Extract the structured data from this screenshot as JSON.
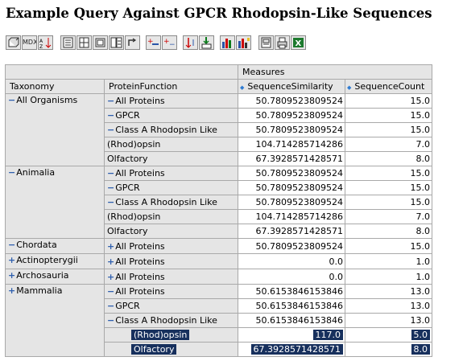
{
  "page": {
    "title": "Example Query Against GPCR Rhodopsin-Like Sequences"
  },
  "toolbar": {
    "buttons": [
      {
        "name": "cube-navigator-icon",
        "label": ""
      },
      {
        "name": "mdx-editor-button",
        "label": "MDX"
      },
      {
        "name": "sort-icon",
        "label": ""
      },
      {
        "name": "show-parent-first-icon",
        "label": ""
      },
      {
        "name": "show-parent-last-icon",
        "label": ""
      },
      {
        "name": "hide-spans-icon",
        "label": ""
      },
      {
        "name": "show-properties-icon",
        "label": ""
      },
      {
        "name": "swap-axes-icon",
        "label": ""
      },
      {
        "name": "drill-member-icon",
        "label": ""
      },
      {
        "name": "drill-position-icon",
        "label": ""
      },
      {
        "name": "drill-replace-icon",
        "label": ""
      },
      {
        "name": "drill-through-icon",
        "label": ""
      },
      {
        "name": "show-chart-icon",
        "label": ""
      },
      {
        "name": "chart-config-icon",
        "label": ""
      },
      {
        "name": "print-config-icon",
        "label": ""
      },
      {
        "name": "print-pdf-icon",
        "label": ""
      },
      {
        "name": "export-excel-icon",
        "label": ""
      }
    ]
  },
  "table": {
    "measures_label": "Measures",
    "columns": {
      "taxonomy": "Taxonomy",
      "protein_function": "ProteinFunction",
      "sequence_similarity": "SequenceSimilarity",
      "sequence_count": "SequenceCount"
    },
    "groups": [
      {
        "taxonomy": "All Organisms",
        "tax_expander": "−",
        "tax_indent": 0,
        "rows": [
          {
            "pf": "All Proteins",
            "pf_expander": "−",
            "pf_level": 0,
            "sim": "50.7809523809524",
            "count": "15.0"
          },
          {
            "pf": "GPCR",
            "pf_expander": "−",
            "pf_level": 1,
            "sim": "50.7809523809524",
            "count": "15.0"
          },
          {
            "pf": "Class A Rhodopsin Like",
            "pf_expander": "−",
            "pf_level": 2,
            "sim": "50.7809523809524",
            "count": "15.0"
          },
          {
            "pf": "(Rhod)opsin",
            "pf_expander": "",
            "pf_level": 3,
            "sim": "104.714285714286",
            "count": "7.0"
          },
          {
            "pf": "Olfactory",
            "pf_expander": "",
            "pf_level": 3,
            "sim": "67.3928571428571",
            "count": "8.0"
          }
        ]
      },
      {
        "taxonomy": "Animalia",
        "tax_expander": "−",
        "tax_indent": 1,
        "rows": [
          {
            "pf": "All Proteins",
            "pf_expander": "−",
            "pf_level": 0,
            "sim": "50.7809523809524",
            "count": "15.0"
          },
          {
            "pf": "GPCR",
            "pf_expander": "−",
            "pf_level": 1,
            "sim": "50.7809523809524",
            "count": "15.0"
          },
          {
            "pf": "Class A Rhodopsin Like",
            "pf_expander": "−",
            "pf_level": 2,
            "sim": "50.7809523809524",
            "count": "15.0"
          },
          {
            "pf": "(Rhod)opsin",
            "pf_expander": "",
            "pf_level": 3,
            "sim": "104.714285714286",
            "count": "7.0"
          },
          {
            "pf": "Olfactory",
            "pf_expander": "",
            "pf_level": 3,
            "sim": "67.3928571428571",
            "count": "8.0"
          }
        ]
      },
      {
        "taxonomy": "Chordata",
        "tax_expander": "−",
        "tax_indent": 2,
        "rows": [
          {
            "pf": "All Proteins",
            "pf_expander": "+",
            "pf_level": 0,
            "sim": "50.7809523809524",
            "count": "15.0"
          }
        ]
      },
      {
        "taxonomy": "Actinopterygii",
        "tax_expander": "+",
        "tax_indent": 3,
        "rows": [
          {
            "pf": "All Proteins",
            "pf_expander": "+",
            "pf_level": 0,
            "sim": "0.0",
            "count": "1.0"
          }
        ]
      },
      {
        "taxonomy": "Archosauria",
        "tax_expander": "+",
        "tax_indent": 3,
        "rows": [
          {
            "pf": "All Proteins",
            "pf_expander": "+",
            "pf_level": 0,
            "sim": "0.0",
            "count": "1.0"
          }
        ]
      },
      {
        "taxonomy": "Mammalia",
        "tax_expander": "+",
        "tax_indent": 3,
        "rows": [
          {
            "pf": "All Proteins",
            "pf_expander": "−",
            "pf_level": 0,
            "sim": "50.6153846153846",
            "count": "13.0"
          },
          {
            "pf": "GPCR",
            "pf_expander": "−",
            "pf_level": 1,
            "sim": "50.6153846153846",
            "count": "13.0"
          },
          {
            "pf": "Class A Rhodopsin Like",
            "pf_expander": "−",
            "pf_level": 2,
            "sim": "50.6153846153846",
            "count": "13.0"
          },
          {
            "pf": "(Rhod)opsin",
            "pf_expander": "",
            "pf_level": 3,
            "sim": "117.0",
            "count": "5.0",
            "selected": true
          },
          {
            "pf": "Olfactory",
            "pf_expander": "",
            "pf_level": 3,
            "sim": "67.3928571428571",
            "count": "8.0",
            "selected": true
          }
        ]
      }
    ]
  }
}
